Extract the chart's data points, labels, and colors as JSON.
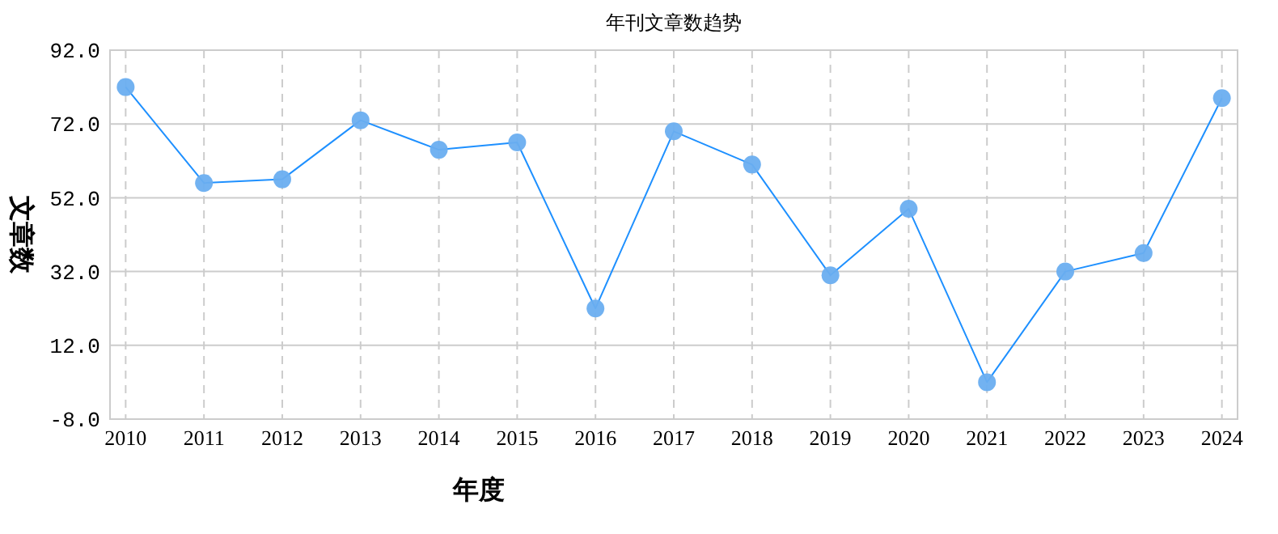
{
  "chart_data": {
    "type": "line",
    "title": "年刊文章数趋势",
    "xlabel": "年度",
    "ylabel": "文章数",
    "categories": [
      "2010",
      "2011",
      "2012",
      "2013",
      "2014",
      "2015",
      "2016",
      "2017",
      "2018",
      "2019",
      "2020",
      "2021",
      "2022",
      "2023",
      "2024"
    ],
    "series": [
      {
        "color": "#1e90ff",
        "values": [
          82,
          56,
          57,
          73,
          65,
          67,
          22,
          70,
          61,
          31,
          49,
          2,
          32,
          37,
          79
        ]
      }
    ],
    "ylim": [
      -8,
      92
    ],
    "yticks": [
      {
        "value": -8,
        "label": "-8.0"
      },
      {
        "value": 12,
        "label": "12.0"
      },
      {
        "value": 32,
        "label": "32.0"
      },
      {
        "value": 52,
        "label": "52.0"
      },
      {
        "value": 72,
        "label": "72.0"
      },
      {
        "value": 92,
        "label": "92.0"
      }
    ],
    "grid": true,
    "marker": "circle",
    "line_style": "solid"
  }
}
